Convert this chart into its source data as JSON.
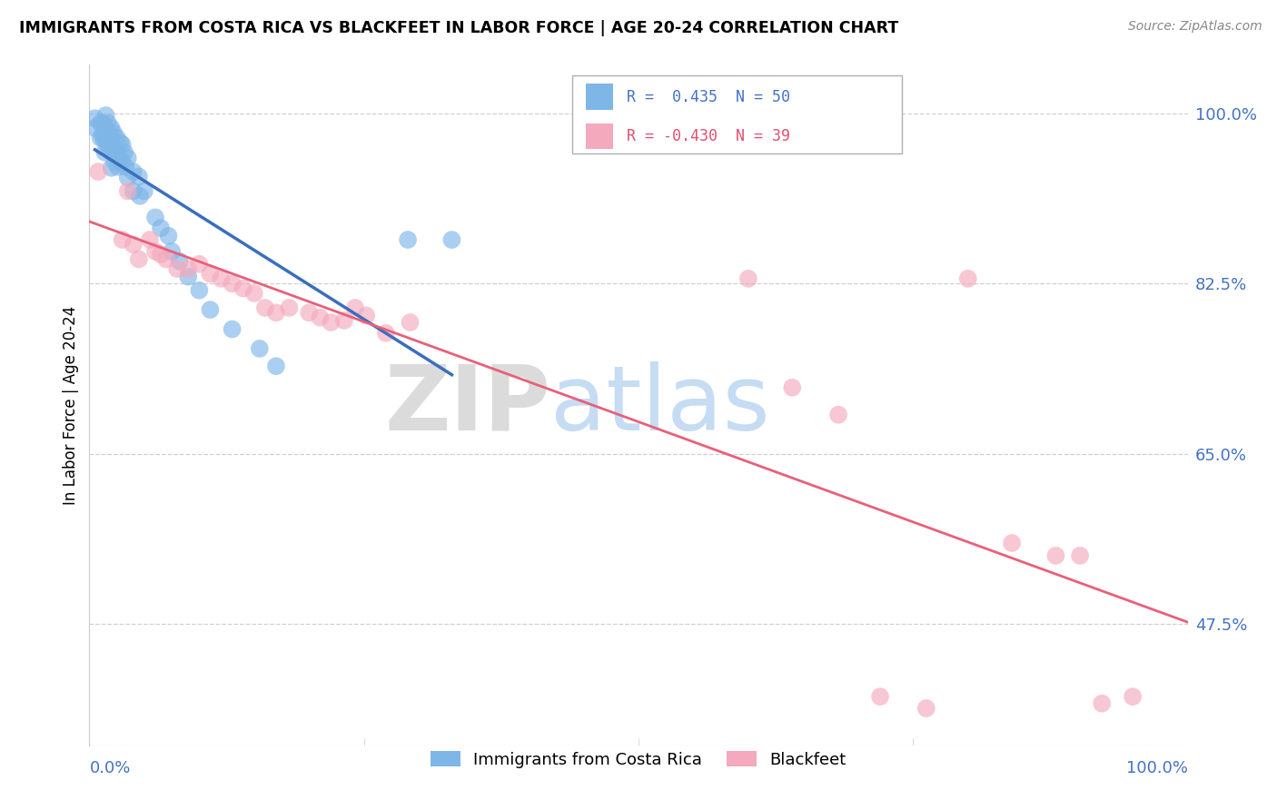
{
  "title": "IMMIGRANTS FROM COSTA RICA VS BLACKFEET IN LABOR FORCE | AGE 20-24 CORRELATION CHART",
  "source": "Source: ZipAtlas.com",
  "ylabel": "In Labor Force | Age 20-24",
  "xlim": [
    0.0,
    1.0
  ],
  "ylim": [
    0.35,
    1.05
  ],
  "yticks": [
    0.475,
    0.65,
    0.825,
    1.0
  ],
  "ytick_labels": [
    "47.5%",
    "65.0%",
    "82.5%",
    "100.0%"
  ],
  "watermark_zip": "ZIP",
  "watermark_atlas": "atlas",
  "legend1_label": "Immigrants from Costa Rica",
  "legend2_label": "Blackfeet",
  "R1": 0.435,
  "N1": 50,
  "R2": -0.43,
  "N2": 39,
  "blue_color": "#7eb6e8",
  "pink_color": "#f4a9bc",
  "blue_line_color": "#3a6fbc",
  "pink_line_color": "#e8607a",
  "costa_rica_x": [
    0.005,
    0.005,
    0.01,
    0.01,
    0.012,
    0.012,
    0.013,
    0.013,
    0.015,
    0.015,
    0.015,
    0.018,
    0.018,
    0.018,
    0.02,
    0.02,
    0.02,
    0.02,
    0.022,
    0.022,
    0.022,
    0.025,
    0.025,
    0.025,
    0.028,
    0.028,
    0.03,
    0.03,
    0.032,
    0.032,
    0.035,
    0.035,
    0.04,
    0.04,
    0.045,
    0.045,
    0.05,
    0.06,
    0.065,
    0.07,
    0.075,
    0.08,
    0.09,
    0.1,
    0.11,
    0.13,
    0.15,
    0.17,
    0.29,
    0.33
  ],
  "costa_rica_y": [
    0.995,
    0.985,
    0.99,
    0.975,
    0.99,
    0.98,
    0.975,
    0.96,
    0.998,
    0.985,
    0.97,
    0.992,
    0.98,
    0.965,
    0.985,
    0.975,
    0.96,
    0.945,
    0.98,
    0.965,
    0.95,
    0.975,
    0.96,
    0.945,
    0.97,
    0.955,
    0.968,
    0.95,
    0.96,
    0.945,
    0.955,
    0.935,
    0.94,
    0.92,
    0.935,
    0.915,
    0.92,
    0.895,
    0.885,
    0.875,
    0.86,
    0.85,
    0.835,
    0.82,
    0.8,
    0.78,
    0.76,
    0.74,
    0.87,
    0.87
  ],
  "blackfeet_x": [
    0.008,
    0.03,
    0.035,
    0.04,
    0.045,
    0.055,
    0.06,
    0.065,
    0.07,
    0.08,
    0.09,
    0.1,
    0.11,
    0.12,
    0.13,
    0.14,
    0.15,
    0.16,
    0.17,
    0.18,
    0.2,
    0.21,
    0.22,
    0.23,
    0.24,
    0.25,
    0.27,
    0.29,
    0.6,
    0.64,
    0.68,
    0.72,
    0.76,
    0.8,
    0.84,
    0.88,
    0.9,
    0.92,
    0.95
  ],
  "blackfeet_y": [
    0.94,
    0.87,
    0.92,
    0.865,
    0.85,
    0.87,
    0.86,
    0.855,
    0.85,
    0.84,
    0.84,
    0.845,
    0.835,
    0.83,
    0.825,
    0.82,
    0.815,
    0.8,
    0.795,
    0.8,
    0.795,
    0.79,
    0.785,
    0.785,
    0.8,
    0.79,
    0.775,
    0.785,
    0.83,
    0.72,
    0.69,
    0.4,
    0.39,
    0.83,
    0.56,
    0.545,
    0.545,
    0.395,
    0.4
  ]
}
